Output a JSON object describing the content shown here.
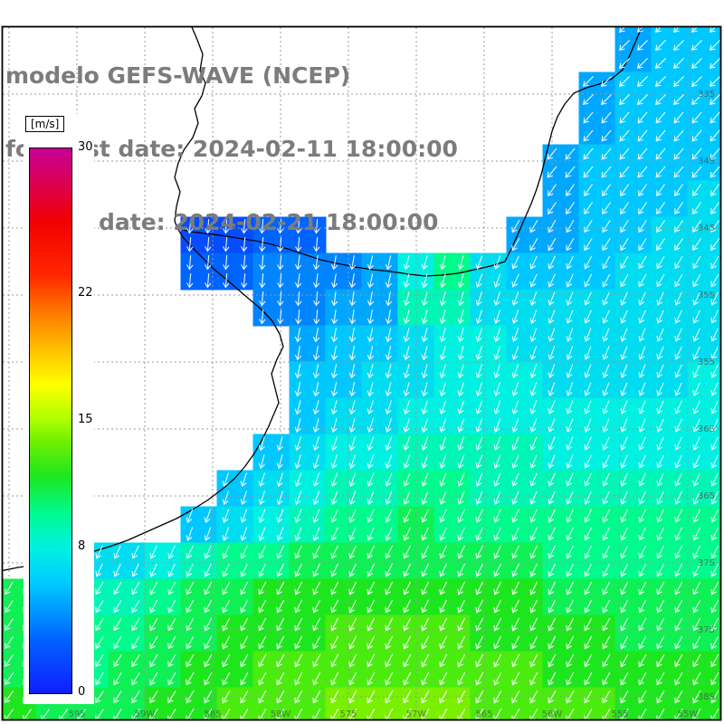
{
  "title": {
    "line1": "modelo GEFS-WAVE (NCEP)",
    "line2": "forecast date: 2024-02-11 18:00:00",
    "line3": "   valid date: 2024-02-21 18:00:00"
  },
  "colorbar": {
    "unit_label": "[m/s]",
    "min": 0,
    "max": 30,
    "ticks": [
      {
        "value": 30,
        "label": "30"
      },
      {
        "value": 22,
        "label": "22"
      },
      {
        "value": 15,
        "label": "15"
      },
      {
        "value": 8,
        "label": "8"
      },
      {
        "value": 0,
        "label": "0"
      }
    ],
    "stops": [
      {
        "v": 0,
        "c": "#0f1eff"
      },
      {
        "v": 3,
        "c": "#0064ff"
      },
      {
        "v": 6,
        "c": "#00c8ff"
      },
      {
        "v": 8,
        "c": "#00f0e1"
      },
      {
        "v": 10,
        "c": "#00fa8c"
      },
      {
        "v": 12,
        "c": "#1ee61e"
      },
      {
        "v": 14,
        "c": "#78f000"
      },
      {
        "v": 15,
        "c": "#aaff00"
      },
      {
        "v": 17,
        "c": "#ffff00"
      },
      {
        "v": 19,
        "c": "#ffbe00"
      },
      {
        "v": 21,
        "c": "#ff7800"
      },
      {
        "v": 23,
        "c": "#ff2800"
      },
      {
        "v": 26,
        "c": "#f00000"
      },
      {
        "v": 28,
        "c": "#dc0050"
      },
      {
        "v": 30,
        "c": "#c80096"
      }
    ]
  },
  "axes": {
    "lat_labels": [
      "335",
      "34S",
      "345",
      "35S",
      "355",
      "36S",
      "365",
      "37S",
      "375",
      "38S"
    ],
    "lon_labels": [
      "595",
      "59W",
      "585",
      "58W",
      "575",
      "57W",
      "565",
      "56W",
      "555",
      "55W"
    ],
    "label_color": "#4a4a4a"
  },
  "chart_data": {
    "type": "heatmap",
    "title": "modelo GEFS-WAVE (NCEP)",
    "field": "wind speed (color) and wind direction (arrows)",
    "units": "m/s",
    "colormap_range": [
      0,
      30
    ],
    "grid_rows": 20,
    "grid_cols": 20,
    "land_color": "#ffffff",
    "sea_arrow_color": "#ffffff",
    "speeds": [
      [
        null,
        null,
        null,
        null,
        null,
        null,
        null,
        null,
        null,
        null,
        null,
        null,
        null,
        null,
        null,
        null,
        null,
        5,
        6,
        6
      ],
      [
        null,
        null,
        null,
        null,
        null,
        null,
        null,
        null,
        null,
        null,
        null,
        null,
        null,
        null,
        null,
        null,
        null,
        5,
        6,
        6
      ],
      [
        null,
        null,
        null,
        null,
        null,
        null,
        null,
        null,
        null,
        null,
        null,
        null,
        null,
        null,
        null,
        null,
        5,
        6,
        6,
        6
      ],
      [
        null,
        null,
        null,
        null,
        null,
        null,
        null,
        null,
        null,
        null,
        null,
        null,
        null,
        null,
        null,
        null,
        5,
        6,
        6,
        6
      ],
      [
        null,
        null,
        null,
        null,
        null,
        null,
        null,
        null,
        null,
        null,
        null,
        null,
        null,
        null,
        null,
        5,
        6,
        6,
        6,
        6
      ],
      [
        null,
        null,
        null,
        null,
        null,
        null,
        null,
        null,
        null,
        null,
        null,
        null,
        null,
        null,
        null,
        5,
        6,
        6,
        6,
        7
      ],
      [
        null,
        null,
        null,
        null,
        null,
        2,
        2,
        3,
        3,
        null,
        null,
        null,
        null,
        null,
        5,
        5,
        6,
        6,
        7,
        7
      ],
      [
        null,
        null,
        null,
        null,
        null,
        3,
        3,
        4,
        4,
        4,
        5,
        8,
        10,
        7,
        6,
        6,
        6,
        7,
        7,
        7
      ],
      [
        null,
        null,
        null,
        null,
        null,
        null,
        null,
        4,
        4,
        5,
        5,
        9,
        9,
        7,
        7,
        7,
        7,
        7,
        7,
        7
      ],
      [
        null,
        null,
        null,
        null,
        null,
        null,
        null,
        null,
        5,
        6,
        6,
        7,
        8,
        8,
        7,
        7,
        7,
        7,
        7,
        7
      ],
      [
        null,
        null,
        null,
        null,
        null,
        null,
        null,
        null,
        6,
        6,
        7,
        7,
        8,
        8,
        8,
        7,
        7,
        7,
        7,
        8
      ],
      [
        null,
        null,
        null,
        null,
        null,
        null,
        null,
        null,
        6,
        7,
        7,
        8,
        8,
        8,
        8,
        8,
        8,
        8,
        8,
        8
      ],
      [
        null,
        null,
        null,
        null,
        null,
        null,
        null,
        6,
        7,
        8,
        8,
        9,
        9,
        9,
        9,
        8,
        8,
        8,
        8,
        8
      ],
      [
        null,
        null,
        null,
        null,
        null,
        null,
        6,
        7,
        8,
        9,
        9,
        10,
        10,
        9,
        9,
        9,
        9,
        9,
        9,
        9
      ],
      [
        null,
        null,
        null,
        null,
        null,
        6,
        7,
        8,
        9,
        10,
        10,
        11,
        10,
        10,
        10,
        10,
        10,
        10,
        10,
        10
      ],
      [
        null,
        null,
        7,
        7,
        8,
        9,
        10,
        10,
        11,
        11,
        11,
        11,
        11,
        11,
        11,
        10,
        10,
        10,
        10,
        10
      ],
      [
        11,
        10,
        9,
        9,
        10,
        11,
        11,
        12,
        12,
        12,
        12,
        12,
        12,
        12,
        12,
        11,
        11,
        11,
        11,
        11
      ],
      [
        11,
        10,
        10,
        10,
        11,
        11,
        12,
        12,
        12,
        13,
        13,
        13,
        13,
        12,
        12,
        12,
        12,
        11,
        11,
        11
      ],
      [
        11,
        11,
        10,
        11,
        11,
        12,
        12,
        13,
        13,
        13,
        13,
        13,
        13,
        13,
        13,
        12,
        12,
        12,
        12,
        12
      ],
      [
        12,
        11,
        11,
        11,
        12,
        12,
        13,
        13,
        13,
        14,
        14,
        14,
        14,
        13,
        13,
        13,
        13,
        12,
        12,
        12
      ]
    ],
    "directions": [
      [
        null,
        null,
        null,
        null,
        null,
        null,
        null,
        null,
        null,
        null,
        null,
        null,
        null,
        null,
        null,
        null,
        null,
        225,
        225,
        225
      ],
      [
        null,
        null,
        null,
        null,
        null,
        null,
        null,
        null,
        null,
        null,
        null,
        null,
        null,
        null,
        null,
        null,
        null,
        225,
        225,
        225
      ],
      [
        null,
        null,
        null,
        null,
        null,
        null,
        null,
        null,
        null,
        null,
        null,
        null,
        null,
        null,
        null,
        null,
        225,
        225,
        225,
        225
      ],
      [
        null,
        null,
        null,
        null,
        null,
        null,
        null,
        null,
        null,
        null,
        null,
        null,
        null,
        null,
        null,
        null,
        220,
        220,
        220,
        220
      ],
      [
        null,
        null,
        null,
        null,
        null,
        null,
        null,
        null,
        null,
        null,
        null,
        null,
        null,
        null,
        null,
        220,
        220,
        220,
        220,
        220
      ],
      [
        null,
        null,
        null,
        null,
        null,
        null,
        null,
        null,
        null,
        null,
        null,
        null,
        null,
        null,
        null,
        215,
        215,
        215,
        215,
        215
      ],
      [
        null,
        null,
        null,
        null,
        null,
        185,
        185,
        185,
        185,
        null,
        null,
        null,
        null,
        null,
        210,
        210,
        212,
        212,
        215,
        215
      ],
      [
        null,
        null,
        null,
        null,
        null,
        185,
        185,
        185,
        188,
        190,
        192,
        195,
        195,
        200,
        205,
        205,
        208,
        210,
        210,
        210
      ],
      [
        null,
        null,
        null,
        null,
        null,
        null,
        null,
        185,
        185,
        188,
        190,
        195,
        195,
        198,
        200,
        202,
        205,
        205,
        205,
        205
      ],
      [
        null,
        null,
        null,
        null,
        null,
        null,
        null,
        null,
        190,
        190,
        192,
        195,
        195,
        198,
        200,
        200,
        202,
        202,
        205,
        205
      ],
      [
        null,
        null,
        null,
        null,
        null,
        null,
        null,
        null,
        192,
        192,
        195,
        195,
        198,
        198,
        200,
        200,
        202,
        202,
        205,
        205
      ],
      [
        null,
        null,
        null,
        null,
        null,
        null,
        null,
        null,
        195,
        195,
        198,
        198,
        200,
        200,
        200,
        202,
        202,
        202,
        205,
        205
      ],
      [
        null,
        null,
        null,
        null,
        null,
        null,
        null,
        195,
        198,
        198,
        200,
        200,
        200,
        202,
        202,
        202,
        205,
        205,
        205,
        205
      ],
      [
        null,
        null,
        null,
        null,
        null,
        null,
        198,
        198,
        200,
        200,
        202,
        202,
        202,
        202,
        204,
        204,
        205,
        205,
        205,
        205
      ],
      [
        null,
        null,
        null,
        null,
        null,
        200,
        200,
        202,
        202,
        204,
        204,
        205,
        205,
        205,
        205,
        205,
        206,
        206,
        206,
        206
      ],
      [
        null,
        null,
        205,
        205,
        205,
        205,
        205,
        206,
        206,
        206,
        206,
        206,
        206,
        206,
        206,
        206,
        206,
        207,
        207,
        207
      ],
      [
        212,
        212,
        210,
        210,
        208,
        208,
        208,
        208,
        207,
        207,
        207,
        206,
        206,
        206,
        206,
        206,
        207,
        207,
        208,
        208
      ],
      [
        214,
        212,
        212,
        210,
        210,
        208,
        208,
        208,
        208,
        207,
        207,
        207,
        207,
        207,
        207,
        207,
        208,
        208,
        208,
        208
      ],
      [
        215,
        214,
        212,
        212,
        210,
        210,
        209,
        209,
        208,
        208,
        208,
        208,
        208,
        208,
        208,
        208,
        209,
        209,
        210,
        210
      ],
      [
        215,
        215,
        214,
        212,
        212,
        210,
        210,
        209,
        209,
        209,
        209,
        209,
        209,
        209,
        210,
        210,
        210,
        210,
        210,
        210
      ]
    ],
    "coastlines": [
      "M 212 30 L 218 44 L 224 60 L 221 78 L 227 92 L 223 106 L 215 120 L 219 136 L 213 152 L 203 166 L 197 180 L 193 196 L 199 212 L 195 228 L 193 244 L 196 252 L 210 256 L 226 258 L 244 260 L 262 263 L 282 266 L 300 270 L 318 275 L 336 281 L 354 287 L 372 291 L 392 295 L 412 298 L 432 300 L 452 303 L 470 305 L 488 304 L 506 302 L 524 298 L 542 294 L 558 289 L 566 273 L 573 257 L 580 241 L 587 225 L 593 209 L 598 193 L 602 177 L 606 161 L 610 145 L 616 129 L 624 115 L 634 103 L 648 97 L 662 93 L 676 87 L 688 77 L 695 63 L 701 49 L 707 35 L 709 30",
      "M 196 252 L 202 262 L 212 273 L 224 285 L 236 297 L 248 307 L 262 319 L 276 331 L 290 343 L 301 355 L 309 369 L 313 383 L 306 397 L 300 413 L 304 429 L 308 445 L 302 459 L 296 473 L 289 487 L 281 501 L 271 515 L 259 529 L 245 541 L 229 553 L 213 563 L 195 573 L 177 581 L 159 589 L 141 597 L 121 604 L 101 610 L 81 616 L 61 620 L 41 624 L 20 627 L 0 631"
    ]
  }
}
